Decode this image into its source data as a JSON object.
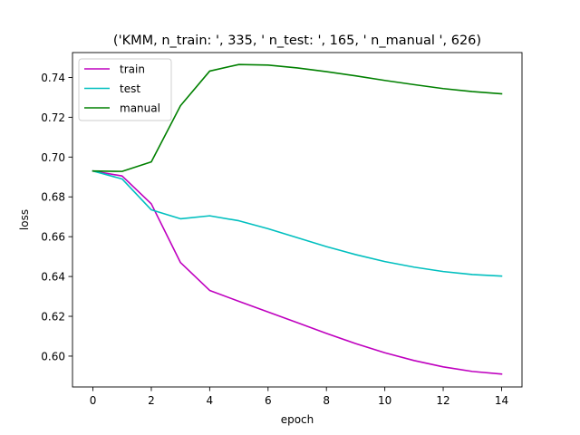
{
  "chart_data": {
    "type": "line",
    "title": "('KMM, n_train: ', 335, ' n_test: ', 165, ' n_manual ', 626)",
    "xlabel": "epoch",
    "ylabel": "loss",
    "x": [
      0,
      1,
      2,
      3,
      4,
      5,
      6,
      7,
      8,
      9,
      10,
      11,
      12,
      13,
      14
    ],
    "xlim": [
      -0.7,
      14.7
    ],
    "ylim": [
      0.5845,
      0.7525
    ],
    "xticks": [
      0,
      2,
      4,
      6,
      8,
      10,
      12,
      14
    ],
    "xtick_labels": [
      "0",
      "2",
      "4",
      "6",
      "8",
      "10",
      "12",
      "14"
    ],
    "yticks": [
      0.6,
      0.62,
      0.64,
      0.66,
      0.68,
      0.7,
      0.72,
      0.74
    ],
    "ytick_labels": [
      "0.60",
      "0.62",
      "0.64",
      "0.66",
      "0.68",
      "0.70",
      "0.72",
      "0.74"
    ],
    "grid": false,
    "legend_position": "top-left",
    "series": [
      {
        "name": "train",
        "color": "#bf00bf",
        "values": [
          0.693,
          0.6905,
          0.6765,
          0.647,
          0.633,
          0.6275,
          0.6222,
          0.6168,
          0.6114,
          0.6063,
          0.6017,
          0.5978,
          0.5946,
          0.5923,
          0.591
        ]
      },
      {
        "name": "test",
        "color": "#00bfbf",
        "values": [
          0.693,
          0.689,
          0.6735,
          0.669,
          0.6705,
          0.668,
          0.664,
          0.6595,
          0.655,
          0.651,
          0.6475,
          0.6447,
          0.6425,
          0.641,
          0.6402
        ]
      },
      {
        "name": "manual",
        "color": "#008000",
        "values": [
          0.693,
          0.6928,
          0.6976,
          0.7258,
          0.7432,
          0.7465,
          0.7462,
          0.7448,
          0.7429,
          0.7408,
          0.7385,
          0.7364,
          0.7344,
          0.7329,
          0.7318
        ]
      }
    ]
  }
}
